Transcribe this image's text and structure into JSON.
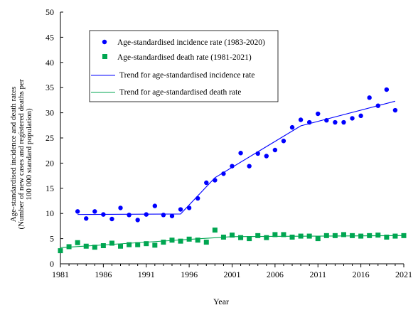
{
  "chart_data": {
    "type": "scatter",
    "title": "",
    "xlabel": "Year",
    "ylabel_lines": [
      "Age-standardised incidence and death rates",
      "(Number of new cases and registered deaths per",
      "100 000 standard population)"
    ],
    "xlim": [
      1981,
      2021
    ],
    "ylim": [
      0,
      50
    ],
    "x_ticks": [
      1981,
      1986,
      1991,
      1996,
      2001,
      2006,
      2011,
      2016,
      2021
    ],
    "y_ticks": [
      0,
      5,
      10,
      15,
      20,
      25,
      30,
      35,
      40,
      45,
      50
    ],
    "grid": false,
    "legend_position": "top-left (inside plot)",
    "series": [
      {
        "name": "Age-standardised incidence rate (1983-2020)",
        "kind": "points",
        "marker": "circle",
        "color": "#0000ff",
        "x": [
          1983,
          1984,
          1985,
          1986,
          1987,
          1988,
          1989,
          1990,
          1991,
          1992,
          1993,
          1994,
          1995,
          1996,
          1997,
          1998,
          1999,
          2000,
          2001,
          2002,
          2003,
          2004,
          2005,
          2006,
          2007,
          2008,
          2009,
          2010,
          2011,
          2012,
          2013,
          2014,
          2015,
          2016,
          2017,
          2018,
          2019,
          2020
        ],
        "y": [
          10.4,
          9.0,
          10.4,
          9.8,
          8.9,
          11.1,
          9.7,
          8.7,
          9.8,
          11.5,
          9.7,
          9.5,
          10.8,
          11.1,
          13.0,
          16.1,
          16.6,
          17.9,
          19.4,
          22.0,
          19.4,
          21.9,
          21.4,
          22.6,
          24.4,
          27.1,
          28.6,
          28.1,
          29.8,
          28.5,
          28.1,
          28.1,
          28.9,
          29.4,
          33.0,
          31.4,
          34.6,
          30.5
        ]
      },
      {
        "name": "Age-standardised death rate (1981-2021)",
        "kind": "points",
        "marker": "square",
        "color": "#00a651",
        "x": [
          1981,
          1982,
          1983,
          1984,
          1985,
          1986,
          1987,
          1988,
          1989,
          1990,
          1991,
          1992,
          1993,
          1994,
          1995,
          1996,
          1997,
          1998,
          1999,
          2000,
          2001,
          2002,
          2003,
          2004,
          2005,
          2006,
          2007,
          2008,
          2009,
          2010,
          2011,
          2012,
          2013,
          2014,
          2015,
          2016,
          2017,
          2018,
          2019,
          2020,
          2021
        ],
        "y": [
          2.6,
          3.4,
          4.2,
          3.5,
          3.3,
          3.6,
          4.1,
          3.5,
          3.8,
          3.8,
          4.0,
          3.7,
          4.3,
          4.7,
          4.5,
          4.9,
          4.7,
          4.3,
          6.7,
          5.3,
          5.7,
          5.2,
          5.0,
          5.6,
          5.2,
          5.8,
          5.8,
          5.3,
          5.5,
          5.5,
          5.0,
          5.6,
          5.6,
          5.8,
          5.6,
          5.5,
          5.6,
          5.7,
          5.3,
          5.5,
          5.6
        ]
      },
      {
        "name": "Trend for age-standardised incidence rate",
        "kind": "line",
        "color": "#0000ff",
        "x": [
          1983,
          1995,
          1999,
          2009,
          2020
        ],
        "y": [
          9.8,
          9.9,
          17.1,
          27.4,
          32.3
        ]
      },
      {
        "name": "Trend for age-standardised death rate",
        "kind": "line",
        "color": "#00a651",
        "x": [
          1981,
          2001,
          2021
        ],
        "y": [
          3.2,
          5.4,
          5.6
        ]
      }
    ]
  }
}
